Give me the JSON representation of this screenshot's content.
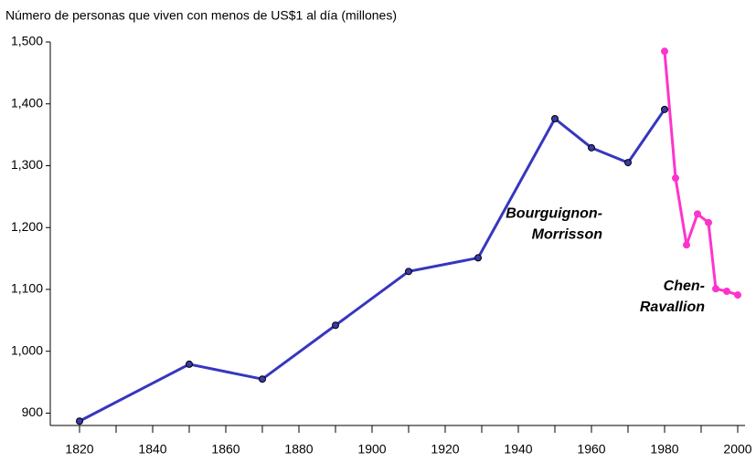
{
  "chart_data": {
    "type": "line",
    "title": "Número de personas que viven con menos de US$1 al día (millones)",
    "series": [
      {
        "color": "#3636c0",
        "marker_color": "#3a3aa8",
        "x": [
          1820,
          1850,
          1870,
          1890,
          1910,
          1929,
          1950,
          1960,
          1970,
          1980
        ],
        "values": [
          887,
          979,
          955,
          1042,
          1129,
          1151,
          1376,
          1329,
          1305,
          1391
        ]
      },
      {
        "color": "#ff33cc",
        "marker_color": "#ff33cc",
        "x": [
          1980,
          1983,
          1986,
          1989,
          1992,
          1994,
          1997,
          2000
        ],
        "values": [
          1485,
          1280,
          1172,
          1222,
          1208,
          1101,
          1097,
          1091
        ]
      }
    ],
    "annotations": [
      {
        "lines": [
          "Bourguignon-",
          "Morrisson"
        ],
        "x": 1963,
        "y": 1222
      },
      {
        "lines": [
          "Chen-",
          "Ravallion"
        ],
        "x": 1991,
        "y": 1105
      }
    ],
    "xlim": [
      1812,
      2002
    ],
    "xticks": [
      1820,
      1840,
      1860,
      1880,
      1900,
      1920,
      1940,
      1960,
      1980,
      2000
    ],
    "ylim": [
      880,
      1500
    ],
    "yticks": [
      900,
      {
        "value": 1000,
        "label": "1,000"
      },
      {
        "value": 1100,
        "label": "1,100"
      },
      {
        "value": 1200,
        "label": "1,200"
      },
      {
        "value": 1300,
        "label": "1,300"
      },
      {
        "value": 1400,
        "label": "1,400"
      },
      {
        "value": 1500,
        "label": "1,500"
      }
    ],
    "grid": false
  }
}
